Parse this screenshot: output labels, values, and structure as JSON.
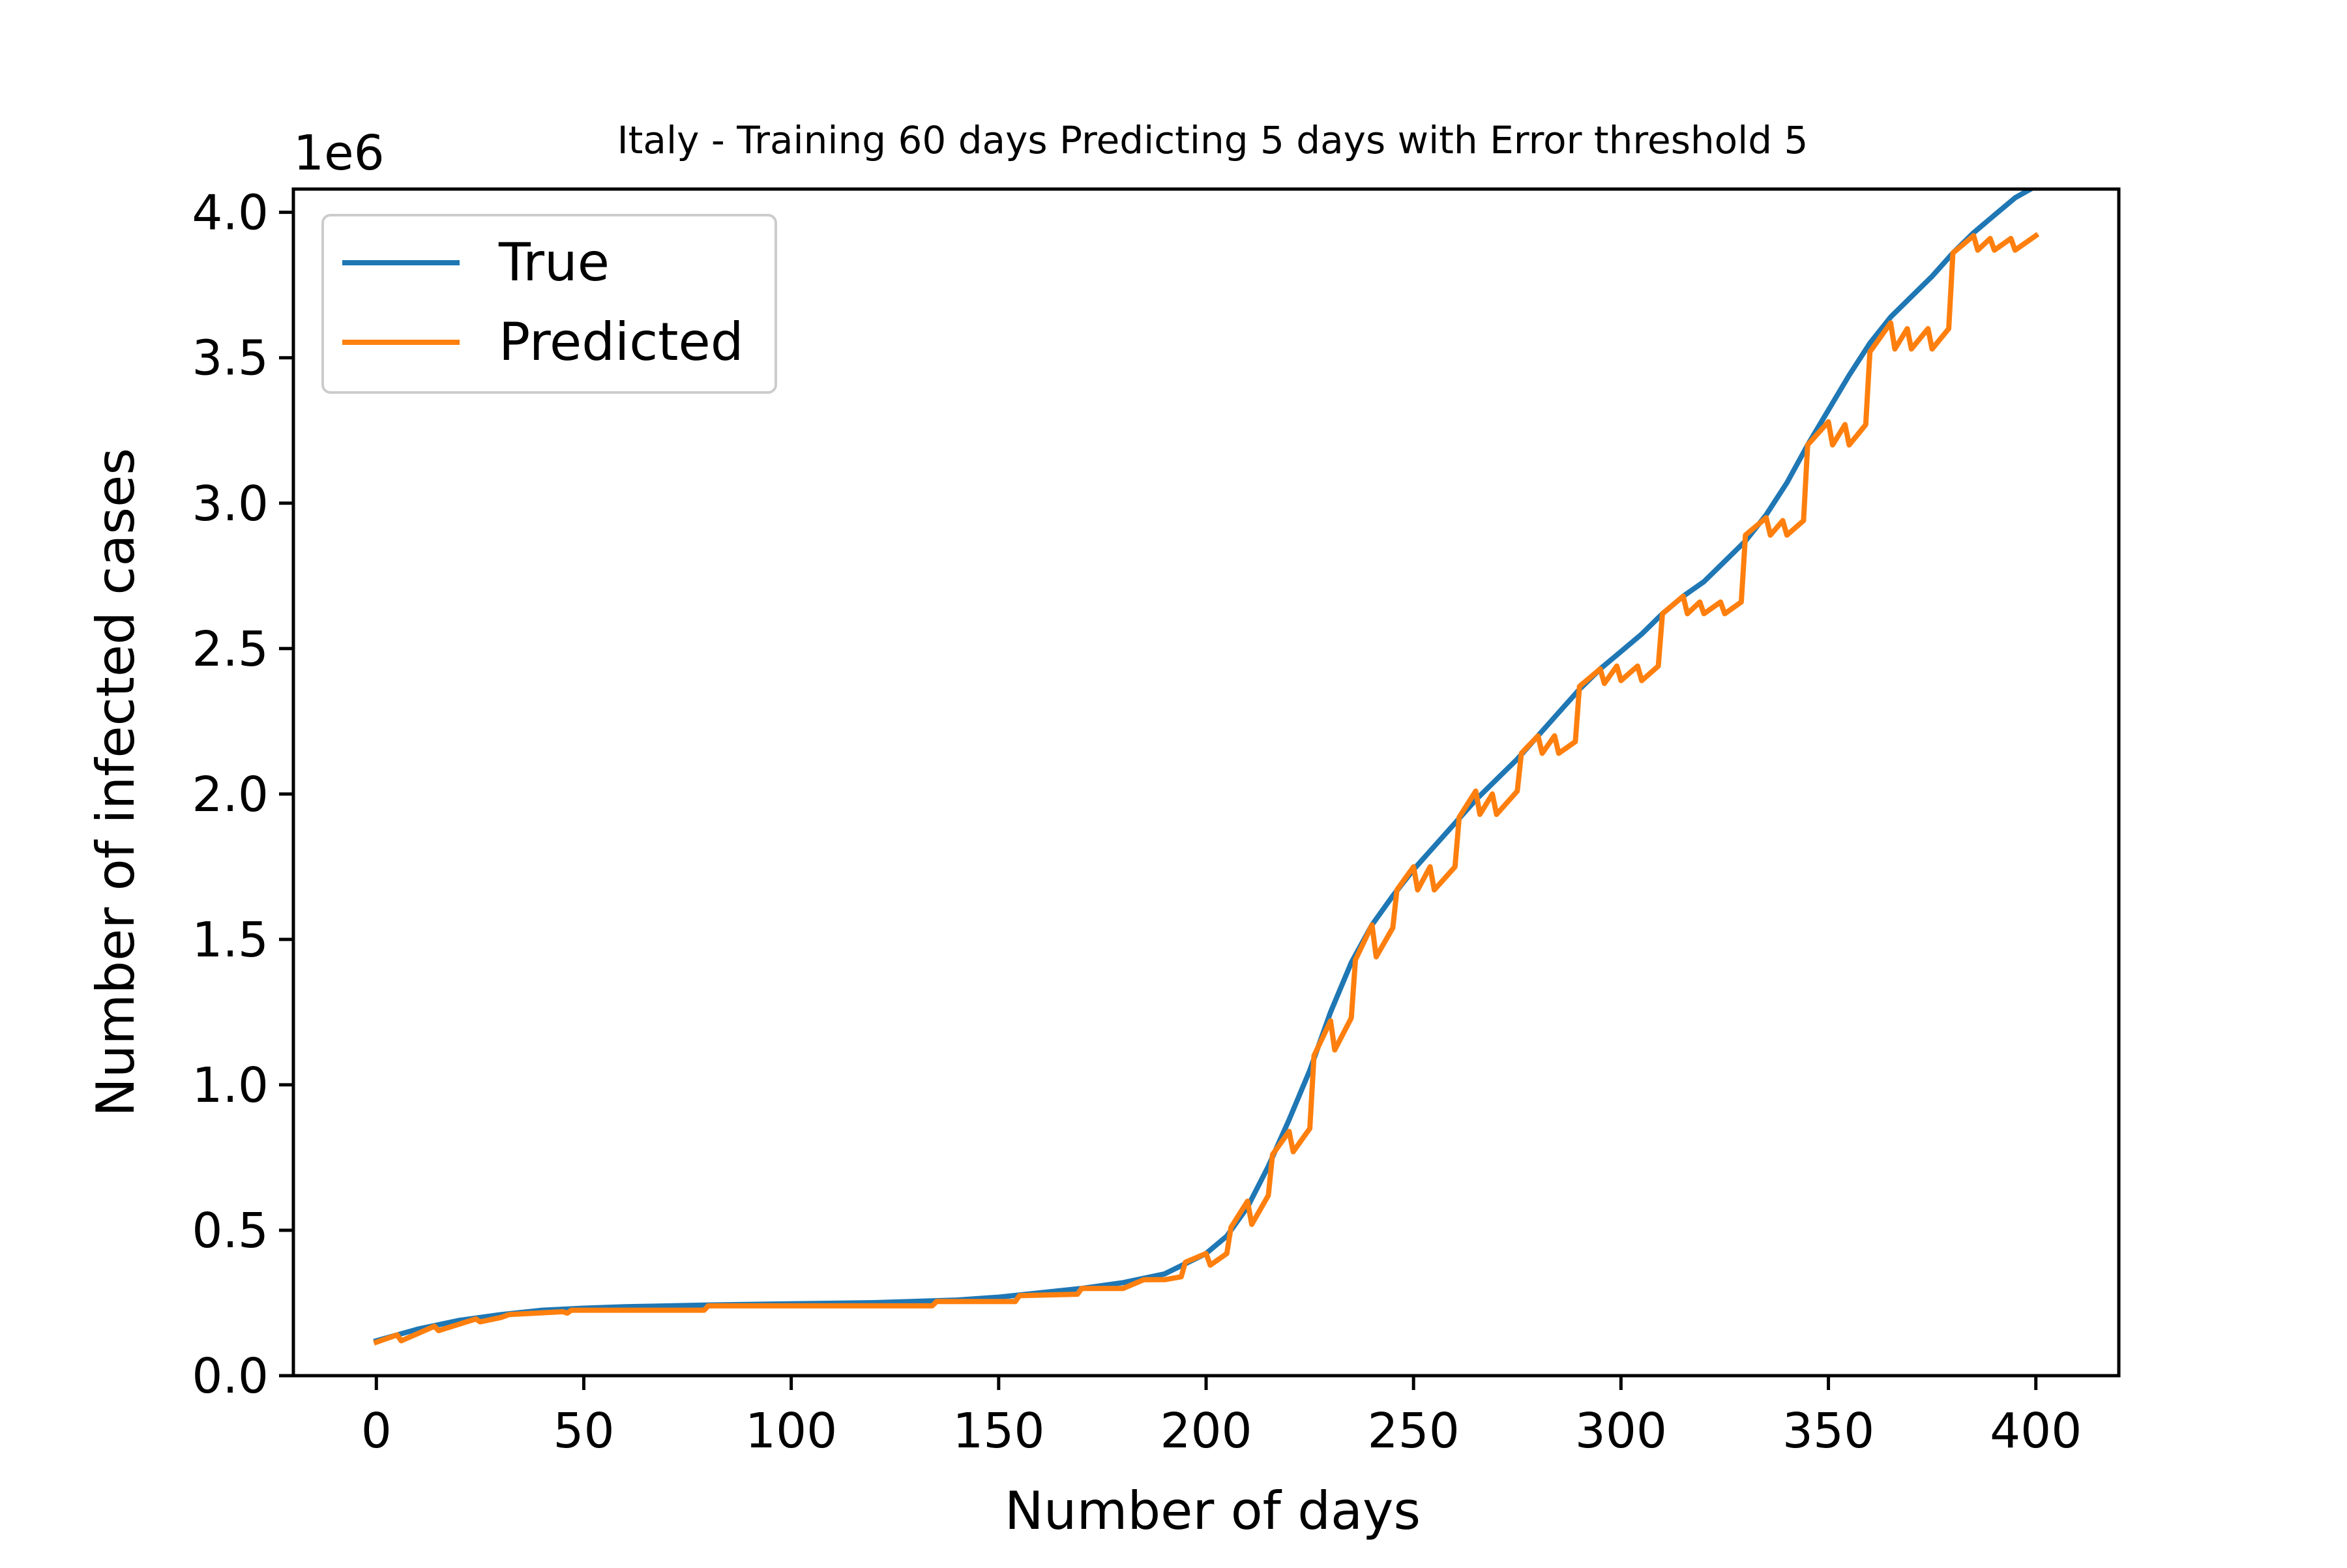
{
  "chart_data": {
    "type": "line",
    "title": "Italy - Training 60 days Predicting 5 days with Error threshold 5",
    "xlabel": "Number of days",
    "ylabel": "Number of infected cases",
    "y_offset_label": "1e6",
    "xlim": [
      -20,
      420
    ],
    "ylim": [
      0,
      4.08
    ],
    "x_ticks": [
      0,
      50,
      100,
      150,
      200,
      250,
      300,
      350,
      400
    ],
    "x_tick_labels": [
      "0",
      "50",
      "100",
      "150",
      "200",
      "250",
      "300",
      "350",
      "400"
    ],
    "y_ticks": [
      0,
      0.5,
      1.0,
      1.5,
      2.0,
      2.5,
      3.0,
      3.5,
      4.0
    ],
    "y_tick_labels": [
      "0.0",
      "0.5",
      "1.0",
      "1.5",
      "2.0",
      "2.5",
      "3.0",
      "3.5",
      "4.0"
    ],
    "grid": false,
    "legend_position": "upper-left",
    "series": [
      {
        "name": "True",
        "color": "#1f77b4",
        "points": [
          [
            0,
            0.12
          ],
          [
            10,
            0.16
          ],
          [
            20,
            0.19
          ],
          [
            30,
            0.21
          ],
          [
            40,
            0.225
          ],
          [
            50,
            0.232
          ],
          [
            60,
            0.237
          ],
          [
            80,
            0.243
          ],
          [
            100,
            0.247
          ],
          [
            120,
            0.251
          ],
          [
            140,
            0.26
          ],
          [
            150,
            0.27
          ],
          [
            160,
            0.285
          ],
          [
            170,
            0.3
          ],
          [
            180,
            0.32
          ],
          [
            190,
            0.35
          ],
          [
            200,
            0.42
          ],
          [
            205,
            0.48
          ],
          [
            210,
            0.58
          ],
          [
            215,
            0.72
          ],
          [
            220,
            0.88
          ],
          [
            225,
            1.05
          ],
          [
            230,
            1.25
          ],
          [
            235,
            1.42
          ],
          [
            240,
            1.55
          ],
          [
            245,
            1.65
          ],
          [
            250,
            1.74
          ],
          [
            255,
            1.82
          ],
          [
            260,
            1.9
          ],
          [
            265,
            1.98
          ],
          [
            270,
            2.05
          ],
          [
            275,
            2.12
          ],
          [
            280,
            2.2
          ],
          [
            285,
            2.28
          ],
          [
            290,
            2.36
          ],
          [
            295,
            2.43
          ],
          [
            300,
            2.49
          ],
          [
            305,
            2.55
          ],
          [
            310,
            2.62
          ],
          [
            315,
            2.68
          ],
          [
            320,
            2.73
          ],
          [
            325,
            2.8
          ],
          [
            330,
            2.87
          ],
          [
            335,
            2.96
          ],
          [
            340,
            3.07
          ],
          [
            345,
            3.2
          ],
          [
            350,
            3.32
          ],
          [
            355,
            3.44
          ],
          [
            360,
            3.55
          ],
          [
            365,
            3.64
          ],
          [
            370,
            3.71
          ],
          [
            375,
            3.78
          ],
          [
            380,
            3.86
          ],
          [
            385,
            3.93
          ],
          [
            390,
            3.99
          ],
          [
            395,
            4.05
          ],
          [
            400,
            4.09
          ]
        ]
      },
      {
        "name": "Predicted",
        "color": "#ff7f0e",
        "points": [
          [
            0,
            0.115
          ],
          [
            5,
            0.14
          ],
          [
            6,
            0.12
          ],
          [
            14,
            0.17
          ],
          [
            15,
            0.155
          ],
          [
            24,
            0.195
          ],
          [
            25,
            0.185
          ],
          [
            30,
            0.2
          ],
          [
            32,
            0.21
          ],
          [
            45,
            0.22
          ],
          [
            46,
            0.215
          ],
          [
            47,
            0.225
          ],
          [
            79,
            0.225
          ],
          [
            80,
            0.24
          ],
          [
            134,
            0.24
          ],
          [
            135,
            0.255
          ],
          [
            154,
            0.255
          ],
          [
            155,
            0.275
          ],
          [
            169,
            0.28
          ],
          [
            170,
            0.3
          ],
          [
            179,
            0.3
          ],
          [
            180,
            0.3
          ],
          [
            185,
            0.33
          ],
          [
            189,
            0.33
          ],
          [
            190,
            0.33
          ],
          [
            194,
            0.34
          ],
          [
            195,
            0.39
          ],
          [
            200,
            0.42
          ],
          [
            201,
            0.38
          ],
          [
            205,
            0.42
          ],
          [
            206,
            0.51
          ],
          [
            210,
            0.6
          ],
          [
            211,
            0.52
          ],
          [
            215,
            0.62
          ],
          [
            216,
            0.76
          ],
          [
            220,
            0.84
          ],
          [
            221,
            0.77
          ],
          [
            225,
            0.85
          ],
          [
            226,
            1.1
          ],
          [
            230,
            1.22
          ],
          [
            231,
            1.12
          ],
          [
            235,
            1.23
          ],
          [
            236,
            1.43
          ],
          [
            240,
            1.55
          ],
          [
            241,
            1.44
          ],
          [
            245,
            1.54
          ],
          [
            246,
            1.67
          ],
          [
            250,
            1.75
          ],
          [
            251,
            1.67
          ],
          [
            254,
            1.75
          ],
          [
            255,
            1.67
          ],
          [
            260,
            1.75
          ],
          [
            261,
            1.92
          ],
          [
            265,
            2.01
          ],
          [
            266,
            1.93
          ],
          [
            269,
            2.0
          ],
          [
            270,
            1.93
          ],
          [
            275,
            2.01
          ],
          [
            276,
            2.14
          ],
          [
            280,
            2.2
          ],
          [
            281,
            2.14
          ],
          [
            284,
            2.2
          ],
          [
            285,
            2.14
          ],
          [
            289,
            2.18
          ],
          [
            290,
            2.37
          ],
          [
            295,
            2.43
          ],
          [
            296,
            2.38
          ],
          [
            299,
            2.44
          ],
          [
            300,
            2.39
          ],
          [
            304,
            2.44
          ],
          [
            305,
            2.39
          ],
          [
            309,
            2.44
          ],
          [
            310,
            2.62
          ],
          [
            315,
            2.68
          ],
          [
            316,
            2.62
          ],
          [
            319,
            2.66
          ],
          [
            320,
            2.62
          ],
          [
            324,
            2.66
          ],
          [
            325,
            2.62
          ],
          [
            329,
            2.66
          ],
          [
            330,
            2.89
          ],
          [
            335,
            2.95
          ],
          [
            336,
            2.89
          ],
          [
            339,
            2.94
          ],
          [
            340,
            2.89
          ],
          [
            344,
            2.94
          ],
          [
            345,
            3.2
          ],
          [
            350,
            3.28
          ],
          [
            351,
            3.2
          ],
          [
            354,
            3.27
          ],
          [
            355,
            3.2
          ],
          [
            359,
            3.27
          ],
          [
            360,
            3.52
          ],
          [
            365,
            3.62
          ],
          [
            366,
            3.53
          ],
          [
            369,
            3.6
          ],
          [
            370,
            3.53
          ],
          [
            374,
            3.6
          ],
          [
            375,
            3.53
          ],
          [
            379,
            3.6
          ],
          [
            380,
            3.86
          ],
          [
            385,
            3.92
          ],
          [
            386,
            3.87
          ],
          [
            389,
            3.91
          ],
          [
            390,
            3.87
          ],
          [
            394,
            3.91
          ],
          [
            395,
            3.87
          ],
          [
            400,
            3.92
          ]
        ]
      }
    ]
  }
}
